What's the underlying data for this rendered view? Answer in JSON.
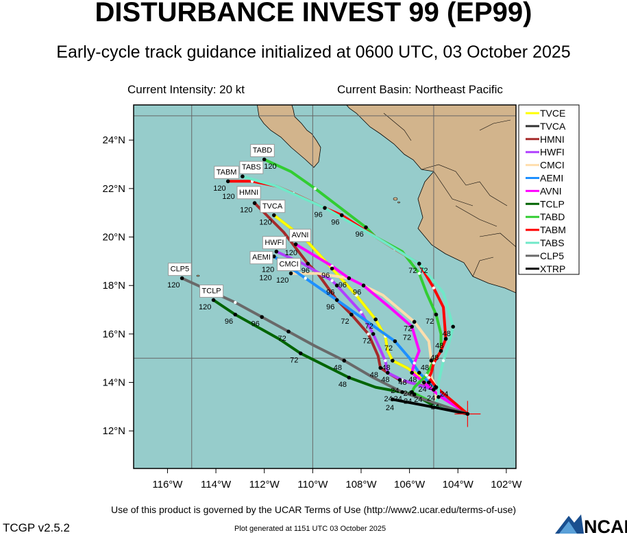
{
  "header": {
    "title": "DISTURBANCE INVEST 99 (EP99)",
    "subtitle": "Early-cycle track guidance initialized at 0600 UTC, 03 October 2025",
    "intensity": "Current Intensity: 20 kt",
    "basin": "Current Basin: Northeast Pacific"
  },
  "footer": {
    "terms": "Use of this product is governed by the UCAR Terms of Use (http://www2.ucar.edu/terms-of-use)",
    "version": "TCGP v2.5.2",
    "generated": "Plot generated at 1151 UTC   03 October 2025",
    "logo_text": "NCAR"
  },
  "colors": {
    "ocean": "#96cccb",
    "land": "#d2b48c",
    "grid": "#666666",
    "current_position": "#ff0000"
  },
  "chart_data": {
    "type": "map-tracks",
    "lon_range": [
      -117.4,
      -101.6
    ],
    "lat_range": [
      10.45,
      25.45
    ],
    "lon_ticks": [
      {
        "v": -116,
        "label": "116°W"
      },
      {
        "v": -114,
        "label": "114°W"
      },
      {
        "v": -112,
        "label": "112°W"
      },
      {
        "v": -110,
        "label": "110°W"
      },
      {
        "v": -108,
        "label": "108°W"
      },
      {
        "v": -106,
        "label": "106°W"
      },
      {
        "v": -104,
        "label": "104°W"
      },
      {
        "v": -102,
        "label": "102°W"
      }
    ],
    "lat_ticks": [
      {
        "v": 12,
        "label": "12°N"
      },
      {
        "v": 14,
        "label": "14°N"
      },
      {
        "v": 16,
        "label": "16°N"
      },
      {
        "v": 18,
        "label": "18°N"
      },
      {
        "v": 20,
        "label": "20°N"
      },
      {
        "v": 22,
        "label": "22°N"
      },
      {
        "v": 24,
        "label": "24°N"
      }
    ],
    "grid_lon": [
      -115,
      -110,
      -105
    ],
    "grid_lat": [
      15,
      25
    ],
    "current_position": {
      "lon": -103.6,
      "lat": 12.7
    },
    "legend_placement": "right",
    "tracks": [
      {
        "name": "TVCA",
        "color": "#333333",
        "box": true,
        "points": [
          [
            -103.6,
            12.7
          ],
          [
            -104.6,
            13.4
          ],
          [
            -105.2,
            14.0
          ],
          [
            -106.1,
            14.6
          ],
          [
            -106.7,
            14.9
          ],
          [
            -106.9,
            15.3
          ],
          [
            -107.0,
            15.9
          ],
          [
            -107.4,
            16.6
          ],
          [
            -108.2,
            17.6
          ],
          [
            -109.2,
            18.7
          ],
          [
            -110.3,
            19.9
          ],
          [
            -111.6,
            20.9
          ]
        ],
        "markers": [
          {
            "h": "120",
            "lon": -111.6,
            "lat": 20.9
          }
        ]
      },
      {
        "name": "TVCE",
        "color": "#ffff00",
        "box": false,
        "points": [
          [
            -103.6,
            12.7
          ],
          [
            -104.6,
            13.4
          ],
          [
            -105.2,
            14.0
          ],
          [
            -106.1,
            14.6
          ],
          [
            -106.7,
            14.9
          ],
          [
            -106.9,
            15.3
          ],
          [
            -107.0,
            15.9
          ],
          [
            -107.4,
            16.6
          ],
          [
            -108.2,
            17.6
          ],
          [
            -109.2,
            18.7
          ],
          [
            -110.3,
            19.9
          ],
          [
            -111.6,
            20.9
          ]
        ],
        "markers": [
          {
            "h": "96",
            "lon": -109.2,
            "lat": 18.7
          },
          {
            "h": "72",
            "lon": -107.4,
            "lat": 16.6
          },
          {
            "h": "48",
            "lon": -106.7,
            "lat": 14.9
          },
          {
            "h": "24",
            "lon": -105.2,
            "lat": 14.0
          }
        ]
      },
      {
        "name": "HMNI",
        "color": "#a52a2a",
        "box": true,
        "points": [
          [
            -103.6,
            12.7
          ],
          [
            -105.2,
            13.8
          ],
          [
            -106.4,
            14.1
          ],
          [
            -106.9,
            14.4
          ],
          [
            -107.2,
            14.6
          ],
          [
            -107.3,
            15.1
          ],
          [
            -107.7,
            16.0
          ],
          [
            -108.4,
            16.8
          ],
          [
            -109.0,
            17.4
          ],
          [
            -109.8,
            18.5
          ],
          [
            -110.2,
            18.9
          ],
          [
            -111.2,
            20.2
          ],
          [
            -112.4,
            21.4
          ]
        ],
        "markers": [
          {
            "h": "120",
            "lon": -112.4,
            "lat": 21.4
          },
          {
            "h": "96",
            "lon": -110.2,
            "lat": 18.9
          },
          {
            "h": "72",
            "lon": -108.4,
            "lat": 16.8
          },
          {
            "h": "48",
            "lon": -107.2,
            "lat": 14.6
          },
          {
            "h": "24",
            "lon": -106.4,
            "lat": 14.1
          }
        ]
      },
      {
        "name": "HWFI",
        "color": "#b040ff",
        "box": true,
        "points": [
          [
            -103.6,
            12.7
          ],
          [
            -105.0,
            13.7
          ],
          [
            -106.3,
            14.1
          ],
          [
            -106.9,
            14.4
          ],
          [
            -107.0,
            14.9
          ],
          [
            -107.5,
            16.0
          ],
          [
            -108.0,
            16.9
          ],
          [
            -109.0,
            18.0
          ],
          [
            -109.2,
            18.2
          ],
          [
            -110.4,
            18.9
          ],
          [
            -111.5,
            19.4
          ]
        ],
        "markers": [
          {
            "h": "120",
            "lon": -111.5,
            "lat": 19.4
          },
          {
            "h": "96",
            "lon": -109.0,
            "lat": 18.0
          },
          {
            "h": "72",
            "lon": -107.5,
            "lat": 16.0
          },
          {
            "h": "48",
            "lon": -106.9,
            "lat": 14.4
          },
          {
            "h": "24",
            "lon": -105.0,
            "lat": 13.7
          }
        ]
      },
      {
        "name": "CMCI",
        "color": "#ffdead",
        "box": true,
        "points": [
          [
            -103.6,
            12.7
          ],
          [
            -104.9,
            13.1
          ],
          [
            -104.9,
            13.8
          ],
          [
            -105.2,
            14.4
          ],
          [
            -105.1,
            14.9
          ],
          [
            -105.2,
            15.7
          ],
          [
            -105.8,
            16.5
          ],
          [
            -107.1,
            17.6
          ],
          [
            -108.5,
            18.3
          ],
          [
            -109.8,
            18.5
          ],
          [
            -110.9,
            18.5
          ]
        ],
        "markers": [
          {
            "h": "120",
            "lon": -110.9,
            "lat": 18.5
          },
          {
            "h": "96",
            "lon": -108.5,
            "lat": 18.3
          },
          {
            "h": "72",
            "lon": -105.8,
            "lat": 16.5
          },
          {
            "h": "48",
            "lon": -105.1,
            "lat": 14.9
          },
          {
            "h": "24",
            "lon": -104.9,
            "lat": 13.8
          }
        ]
      },
      {
        "name": "AEMI",
        "color": "#1e90ff",
        "box": true,
        "points": [
          [
            -103.6,
            12.7
          ],
          [
            -105.2,
            14.0
          ],
          [
            -105.6,
            14.4
          ],
          [
            -106.0,
            15.0
          ],
          [
            -106.6,
            15.7
          ],
          [
            -109.0,
            17.4
          ],
          [
            -110.3,
            18.3
          ],
          [
            -111.6,
            19.2
          ]
        ],
        "markers": [
          {
            "h": "120",
            "lon": -111.6,
            "lat": 19.2
          },
          {
            "h": "96",
            "lon": -109.0,
            "lat": 17.4
          },
          {
            "h": "72",
            "lon": -106.6,
            "lat": 15.7
          },
          {
            "h": "48",
            "lon": -105.6,
            "lat": 14.4
          },
          {
            "h": "24",
            "lon": -105.2,
            "lat": 14.0
          }
        ]
      },
      {
        "name": "AVNI",
        "color": "#ff00ff",
        "box": true,
        "points": [
          [
            -103.6,
            12.7
          ],
          [
            -104.7,
            13.4
          ],
          [
            -105.4,
            14.0
          ],
          [
            -105.9,
            14.4
          ],
          [
            -105.8,
            14.8
          ],
          [
            -105.6,
            15.3
          ],
          [
            -105.9,
            16.3
          ],
          [
            -106.7,
            17.0
          ],
          [
            -107.9,
            18.0
          ],
          [
            -108.5,
            18.3
          ],
          [
            -109.2,
            18.8
          ],
          [
            -110.7,
            19.7
          ]
        ],
        "markers": [
          {
            "h": "120",
            "lon": -110.7,
            "lat": 19.7
          },
          {
            "h": "96",
            "lon": -107.9,
            "lat": 18.0
          },
          {
            "h": "72",
            "lon": -105.9,
            "lat": 16.3
          },
          {
            "h": "48",
            "lon": -105.9,
            "lat": 14.4
          },
          {
            "h": "24",
            "lon": -105.4,
            "lat": 14.0
          }
        ]
      },
      {
        "name": "TCLP",
        "color": "#006400",
        "box": true,
        "points": [
          [
            -103.6,
            12.7
          ],
          [
            -105.1,
            13.1
          ],
          [
            -105.8,
            13.5
          ],
          [
            -107.4,
            13.8
          ],
          [
            -108.5,
            14.2
          ],
          [
            -109.5,
            14.7
          ],
          [
            -110.5,
            15.2
          ],
          [
            -111.4,
            15.8
          ],
          [
            -113.2,
            16.8
          ],
          [
            -114.1,
            17.4
          ]
        ],
        "markers": [
          {
            "h": "120",
            "lon": -114.1,
            "lat": 17.4
          },
          {
            "h": "96",
            "lon": -113.2,
            "lat": 16.8
          },
          {
            "h": "72",
            "lon": -110.5,
            "lat": 15.2
          },
          {
            "h": "48",
            "lon": -108.5,
            "lat": 14.2
          },
          {
            "h": "24",
            "lon": -105.8,
            "lat": 13.5
          }
        ]
      },
      {
        "name": "TABD",
        "color": "#32cd32",
        "box": true,
        "points": [
          [
            -103.6,
            12.7
          ],
          [
            -105.1,
            13.2
          ],
          [
            -105.9,
            13.6
          ],
          [
            -105.8,
            13.8
          ],
          [
            -105.3,
            14.3
          ],
          [
            -105.1,
            14.7
          ],
          [
            -104.7,
            15.3
          ],
          [
            -104.7,
            16.0
          ],
          [
            -104.9,
            16.8
          ],
          [
            -105.3,
            17.7
          ],
          [
            -105.6,
            18.5
          ],
          [
            -106.3,
            19.4
          ],
          [
            -107.4,
            20.0
          ],
          [
            -107.8,
            20.4
          ],
          [
            -109.9,
            22.0
          ],
          [
            -110.9,
            22.7
          ],
          [
            -112.0,
            23.2
          ]
        ],
        "markers": [
          {
            "h": "120",
            "lon": -112.0,
            "lat": 23.2
          },
          {
            "h": "96",
            "lon": -107.8,
            "lat": 20.4
          },
          {
            "h": "72",
            "lon": -104.9,
            "lat": 16.8
          },
          {
            "h": "48",
            "lon": -104.7,
            "lat": 15.3
          },
          {
            "h": "24",
            "lon": -105.9,
            "lat": 13.6
          }
        ]
      },
      {
        "name": "TABM",
        "color": "#ff0000",
        "box": true,
        "points": [
          [
            -103.6,
            12.7
          ],
          [
            -104.9,
            13.8
          ],
          [
            -105.2,
            14.2
          ],
          [
            -105.1,
            14.4
          ],
          [
            -105.0,
            14.8
          ],
          [
            -104.7,
            15.3
          ],
          [
            -104.5,
            15.8
          ],
          [
            -104.6,
            17.1
          ],
          [
            -105.0,
            17.9
          ],
          [
            -105.6,
            18.9
          ],
          [
            -106.6,
            19.5
          ],
          [
            -107.4,
            20.0
          ],
          [
            -108.8,
            20.9
          ],
          [
            -109.5,
            21.2
          ],
          [
            -110.8,
            21.8
          ],
          [
            -111.5,
            22.1
          ],
          [
            -112.5,
            22.3
          ],
          [
            -113.5,
            22.3
          ]
        ],
        "markers": [
          {
            "h": "120",
            "lon": -113.5,
            "lat": 22.3
          },
          {
            "h": "96",
            "lon": -108.8,
            "lat": 20.9
          },
          {
            "h": "72",
            "lon": -105.6,
            "lat": 18.9
          },
          {
            "h": "48",
            "lon": -104.5,
            "lat": 15.8
          },
          {
            "h": "24",
            "lon": -104.9,
            "lat": 13.8
          }
        ]
      },
      {
        "name": "TABS",
        "color": "#70e8c8",
        "box": true,
        "points": [
          [
            -103.6,
            12.7
          ],
          [
            -105.0,
            13.0
          ],
          [
            -104.8,
            13.4
          ],
          [
            -104.8,
            14.0
          ],
          [
            -104.6,
            14.9
          ],
          [
            -104.4,
            15.5
          ],
          [
            -104.2,
            16.3
          ],
          [
            -104.6,
            17.7
          ],
          [
            -105.6,
            18.9
          ],
          [
            -107.4,
            20.0
          ],
          [
            -109.5,
            21.2
          ],
          [
            -111.5,
            22.1
          ],
          [
            -112.9,
            22.5
          ]
        ],
        "markers": [
          {
            "h": "120",
            "lon": -112.9,
            "lat": 22.5
          },
          {
            "h": "96",
            "lon": -109.5,
            "lat": 21.2
          },
          {
            "h": "72",
            "lon": -105.6,
            "lat": 18.9
          },
          {
            "h": "48",
            "lon": -104.2,
            "lat": 16.3
          },
          {
            "h": "24",
            "lon": -104.8,
            "lat": 13.4
          }
        ]
      },
      {
        "name": "CLP5",
        "color": "#696969",
        "box": true,
        "points": [
          [
            -103.6,
            12.7
          ],
          [
            -105.1,
            13.2
          ],
          [
            -106.3,
            13.6
          ],
          [
            -107.5,
            14.2
          ],
          [
            -108.7,
            14.9
          ],
          [
            -109.9,
            15.5
          ],
          [
            -111.0,
            16.1
          ],
          [
            -112.1,
            16.7
          ],
          [
            -113.2,
            17.3
          ],
          [
            -115.4,
            18.3
          ]
        ],
        "markers": [
          {
            "h": "120",
            "lon": -115.4,
            "lat": 18.3
          },
          {
            "h": "96",
            "lon": -112.1,
            "lat": 16.7
          },
          {
            "h": "72",
            "lon": -111.0,
            "lat": 16.1
          },
          {
            "h": "48",
            "lon": -108.7,
            "lat": 14.9
          },
          {
            "h": "24",
            "lon": -106.3,
            "lat": 13.6
          }
        ]
      },
      {
        "name": "XTRP",
        "color": "#000000",
        "box": false,
        "points": [
          [
            -103.6,
            12.7
          ],
          [
            -105.1,
            13.0
          ],
          [
            -106.7,
            13.3
          ]
        ],
        "markers": [
          {
            "h": "24",
            "lon": -106.7,
            "lat": 13.3
          }
        ]
      }
    ],
    "legend": [
      "TVCE",
      "TVCA",
      "HMNI",
      "HWFI",
      "CMCI",
      "AEMI",
      "AVNI",
      "TCLP",
      "TABD",
      "TABM",
      "TABS",
      "CLP5",
      "XTRP"
    ]
  }
}
